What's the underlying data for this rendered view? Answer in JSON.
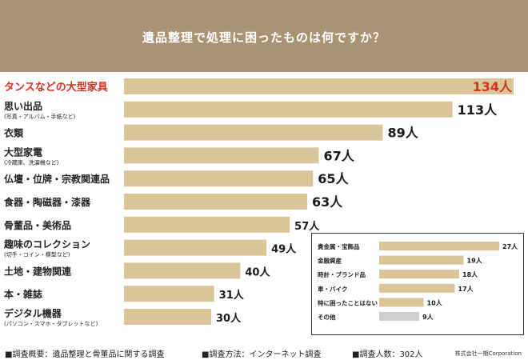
{
  "header": {
    "title": "遺品整理で処理に困ったものは何ですか？"
  },
  "chart_data": [
    {
      "type": "bar",
      "orientation": "horizontal",
      "title": "遺品整理で処理に困ったものは何ですか？",
      "xlim": [
        0,
        134
      ],
      "categories": [
        {
          "label": "タンスなどの大型家具",
          "sublabel": "",
          "value": 134,
          "value_label": "134人",
          "highlight": true
        },
        {
          "label": "思い出品",
          "sublabel": "(写真・アルバム・手紙など)",
          "value": 113,
          "value_label": "113人"
        },
        {
          "label": "衣類",
          "sublabel": "",
          "value": 89,
          "value_label": "89人"
        },
        {
          "label": "大型家電",
          "sublabel": "(冷蔵庫、洗濯機など)",
          "value": 67,
          "value_label": "67人"
        },
        {
          "label": "仏壇・位牌・宗教関連品",
          "sublabel": "",
          "value": 65,
          "value_label": "65人"
        },
        {
          "label": "食器・陶磁器・漆器",
          "sublabel": "",
          "value": 63,
          "value_label": "63人"
        },
        {
          "label": "骨董品・美術品",
          "sublabel": "",
          "value": 57,
          "value_label": "57人"
        },
        {
          "label": "趣味のコレクション",
          "sublabel": "(切手・コイン・模型など)",
          "value": 49,
          "value_label": "49人"
        },
        {
          "label": "土地・建物関連",
          "sublabel": "",
          "value": 40,
          "value_label": "40人"
        },
        {
          "label": "本・雑誌",
          "sublabel": "",
          "value": 31,
          "value_label": "31人"
        },
        {
          "label": "デジタル機器",
          "sublabel": "(パソコン・スマホ・タブレットなど)",
          "value": 30,
          "value_label": "30人"
        }
      ],
      "colors": {
        "bar": "#d9c598",
        "highlight_text": "#d7301f",
        "label_text": "#222222"
      }
    },
    {
      "type": "bar",
      "orientation": "horizontal",
      "categories": [
        {
          "label": "貴金属・宝飾品",
          "value": 27,
          "value_label": "27人"
        },
        {
          "label": "金融資産",
          "value": 19,
          "value_label": "19人"
        },
        {
          "label": "時計・ブランド品",
          "value": 18,
          "value_label": "18人"
        },
        {
          "label": "車・バイク",
          "value": 17,
          "value_label": "17人"
        },
        {
          "label": "特に困ったことはない",
          "value": 10,
          "value_label": "10人"
        },
        {
          "label": "その他",
          "value": 9,
          "value_label": "9人",
          "muted": true
        }
      ],
      "colors": {
        "bar": "#d9c598",
        "muted_bar": "#cfcfcf"
      }
    }
  ],
  "footer": {
    "survey_overview": "■調査概要：遺品整理と骨董品に関する調査",
    "survey_method": "■調査方法：インターネット調査",
    "respondents": "■調査人数：302人",
    "corporation": "株式会社一期Corporation"
  },
  "colors": {
    "header_bg": "#a99374",
    "bar": "#d9c598",
    "highlight": "#d7301f"
  }
}
